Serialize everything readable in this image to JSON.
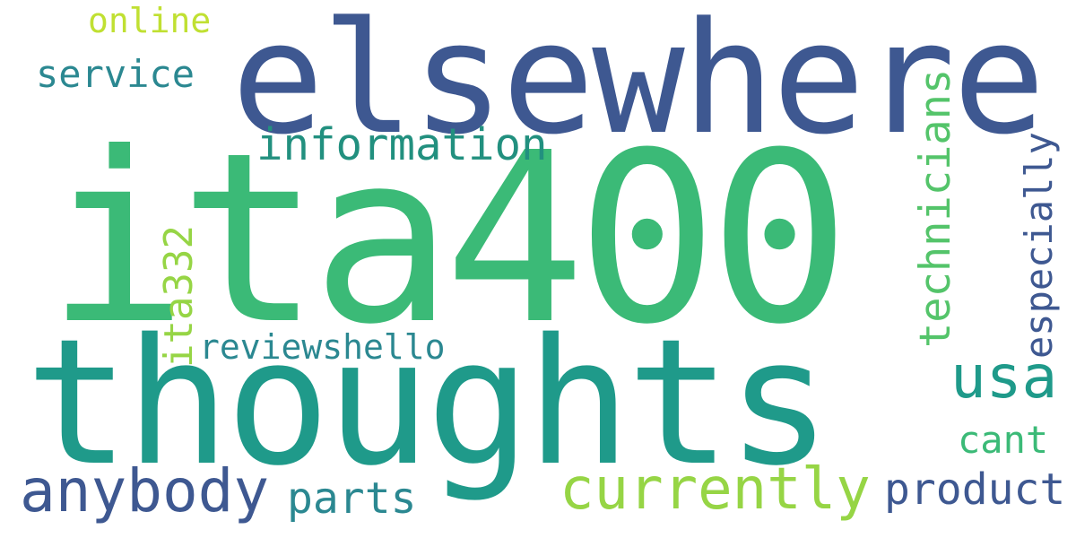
{
  "words": [
    {
      "text": "elsewhere",
      "color": "#3e5891"
    },
    {
      "text": "ita400",
      "color": "#3bba77"
    },
    {
      "text": "thoughts",
      "color": "#1f9a8a"
    },
    {
      "text": "anybody",
      "color": "#3e5891"
    },
    {
      "text": "currently",
      "color": "#96d545"
    },
    {
      "text": "information",
      "color": "#22907f"
    },
    {
      "text": "service",
      "color": "#2b8891"
    },
    {
      "text": "online",
      "color": "#c0e032"
    },
    {
      "text": "usa",
      "color": "#1f9a8a"
    },
    {
      "text": "product",
      "color": "#3e5891"
    },
    {
      "text": "parts",
      "color": "#2b8891"
    },
    {
      "text": "cant",
      "color": "#3bba77"
    },
    {
      "text": "reviewshello",
      "color": "#2b8891"
    },
    {
      "text": "ita332",
      "color": "#96d545"
    },
    {
      "text": "technicians",
      "color": "#54c46a"
    },
    {
      "text": "especially",
      "color": "#3e5891"
    }
  ]
}
